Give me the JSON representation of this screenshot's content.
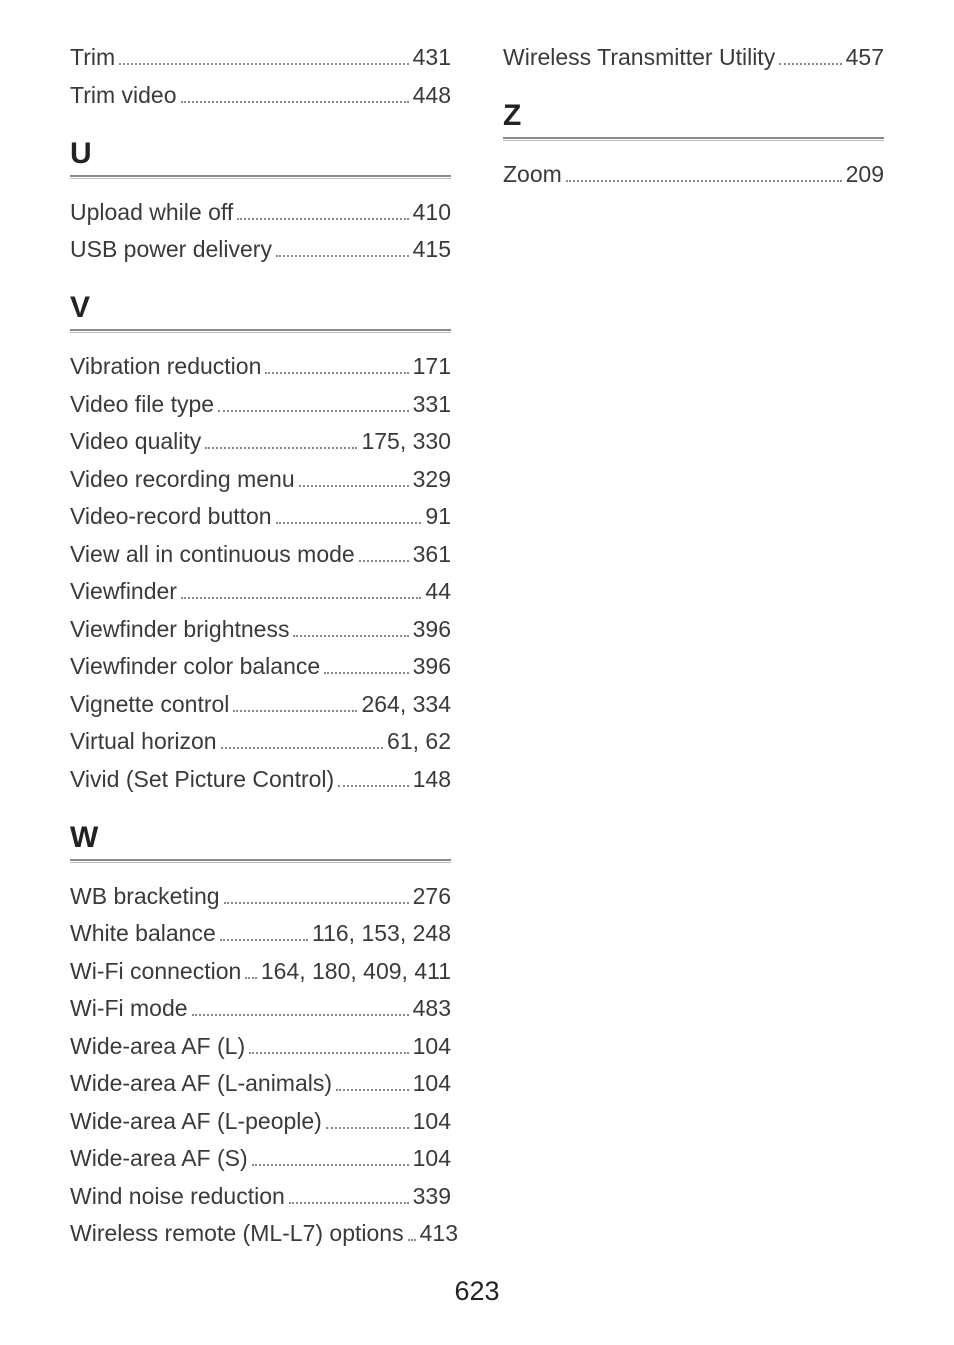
{
  "page_number": "623",
  "left_column": [
    {
      "type": "entry",
      "label": "Trim",
      "pages": "431"
    },
    {
      "type": "entry",
      "label": "Trim video",
      "pages": "448"
    },
    {
      "type": "letter",
      "label": "U"
    },
    {
      "type": "entry",
      "label": "Upload while off",
      "pages": "410"
    },
    {
      "type": "entry",
      "label": "USB power delivery",
      "pages": "415"
    },
    {
      "type": "letter",
      "label": "V"
    },
    {
      "type": "entry",
      "label": "Vibration reduction",
      "pages": "171"
    },
    {
      "type": "entry",
      "label": "Video file type",
      "pages": "331"
    },
    {
      "type": "entry",
      "label": "Video quality",
      "pages": "175, 330"
    },
    {
      "type": "entry",
      "label": "Video recording menu",
      "pages": "329"
    },
    {
      "type": "entry",
      "label": "Video-record button",
      "pages": "91"
    },
    {
      "type": "entry",
      "label": "View all in continuous mode",
      "pages": "361"
    },
    {
      "type": "entry",
      "label": "Viewfinder",
      "pages": "44"
    },
    {
      "type": "entry",
      "label": "Viewfinder brightness",
      "pages": "396"
    },
    {
      "type": "entry",
      "label": "Viewfinder color balance",
      "pages": "396"
    },
    {
      "type": "entry",
      "label": "Vignette control",
      "pages": "264, 334"
    },
    {
      "type": "entry",
      "label": "Virtual horizon",
      "pages": "61, 62"
    },
    {
      "type": "entry",
      "label": "Vivid (Set Picture Control)",
      "pages": "148"
    },
    {
      "type": "letter",
      "label": "W"
    },
    {
      "type": "entry",
      "label": "WB bracketing",
      "pages": "276"
    },
    {
      "type": "entry",
      "label": "White balance",
      "pages": "116, 153, 248"
    },
    {
      "type": "entry",
      "label": "Wi-Fi connection",
      "pages": "164, 180, 409, 411"
    },
    {
      "type": "entry",
      "label": "Wi-Fi mode",
      "pages": "483"
    },
    {
      "type": "entry",
      "label": "Wide-area AF (L)",
      "pages": "104"
    },
    {
      "type": "entry",
      "label": "Wide-area AF (L-animals)",
      "pages": "104"
    },
    {
      "type": "entry",
      "label": "Wide-area AF (L-people)",
      "pages": "104"
    },
    {
      "type": "entry",
      "label": "Wide-area AF (S)",
      "pages": "104"
    },
    {
      "type": "entry",
      "label": "Wind noise reduction",
      "pages": "339"
    },
    {
      "type": "entry",
      "label": "Wireless remote (ML-L7) options",
      "pages": "413"
    }
  ],
  "right_column": [
    {
      "type": "entry",
      "label": "Wireless Transmitter Utility",
      "pages": "457"
    },
    {
      "type": "letter",
      "label": "Z"
    },
    {
      "type": "entry",
      "label": "Zoom",
      "pages": "209"
    }
  ]
}
